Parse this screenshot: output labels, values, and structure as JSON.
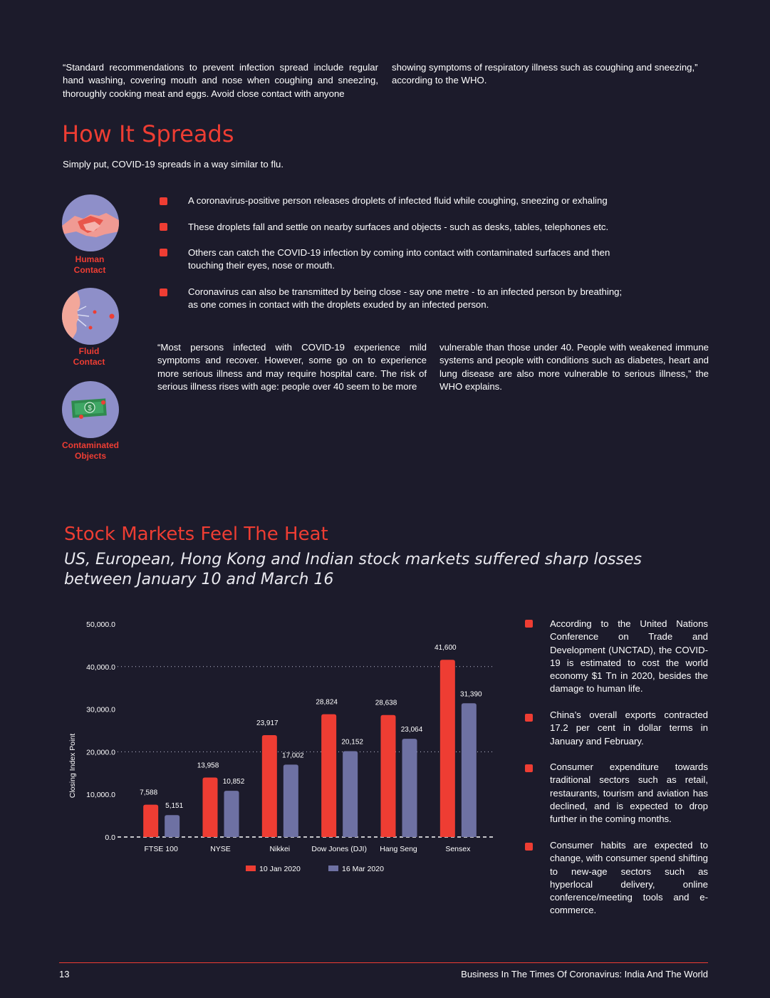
{
  "intro": {
    "col1": "“Standard recommendations to prevent infection spread include regular hand washing, covering mouth and nose when coughing and sneezing, thoroughly cooking meat and eggs. Avoid close contact with anyone",
    "col2": "showing symptoms of respiratory illness such as coughing and sneezing,” according to the WHO."
  },
  "spreads": {
    "title": "How It Spreads",
    "subtitle": "Simply put, COVID-19 spreads in a way similar to flu.",
    "icons": [
      {
        "label1": "Human",
        "label2": "Contact",
        "icon": "handshake-icon"
      },
      {
        "label1": "Fluid",
        "label2": "Contact",
        "icon": "sneeze-icon"
      },
      {
        "label1": "Contaminated",
        "label2": "Objects",
        "icon": "money-icon"
      }
    ],
    "bullets": [
      "A coronavirus-positive person releases droplets of infected fluid while coughing, sneezing or exhaling",
      "These droplets fall and settle on nearby surfaces and objects - such as desks, tables, telephones etc.",
      "Others can catch the COVID-19 infection by coming into contact with contaminated surfaces and then touching their eyes, nose or mouth.",
      "Coronavirus can also be transmitted by being close - say one metre - to an infected person by breathing; as one comes in contact with the droplets exuded by an infected person."
    ],
    "quote_col1": "“Most persons infected with COVID-19 experience mild symptoms and recover. However, some go on to experience more serious illness and may require hospital care. The risk of serious illness rises with age: people over 40 seem to be more",
    "quote_col2": "vulnerable than those under 40. People with weakened immune systems and people with conditions such as diabetes, heart and lung disease are also more vulnerable to serious illness,” the WHO explains."
  },
  "stocks": {
    "title": "Stock Markets Feel The Heat",
    "subtitle": "US, European, Hong Kong and Indian stock markets suffered sharp losses between January 10 and March 16",
    "side_bullets": [
      "According to the United Nations Conference on Trade and Development (UNCTAD), the COVID-19 is estimated to cost the world economy $1 Tn in 2020, besides the damage to human life.",
      "China’s overall exports contracted 17.2 per cent in dollar terms in January and February.",
      "Consumer expenditure towards traditional sectors such as retail, restaurants, tourism and aviation has declined, and is expected to drop further in the coming months.",
      "Consumer habits are expected to change, with consumer spend shifting to new-age sectors such as hyperlocal delivery, online conference/meeting tools and e-commerce."
    ]
  },
  "chart_data": {
    "type": "bar",
    "title": "",
    "ylabel": "Closing Index Point",
    "xlabel": "",
    "ylim": [
      0,
      50000
    ],
    "yticks": [
      "0.0",
      "10,000.0",
      "20,000.0",
      "30,000.0",
      "40,000.0",
      "50,000.0"
    ],
    "categories": [
      "FTSE 100",
      "NYSE",
      "Nikkei",
      "Dow Jones (DJI)",
      "Hang Seng",
      "Sensex"
    ],
    "series": [
      {
        "name": "10 Jan 2020",
        "color": "#ee3d33",
        "values": [
          7588,
          13958,
          23917,
          28824,
          28638,
          41600
        ],
        "labels": [
          "7,588",
          "13,958",
          "23,917",
          "28,824",
          "28,638",
          "41,600"
        ]
      },
      {
        "name": "16 Mar 2020",
        "color": "#6e71a3",
        "values": [
          5151,
          10852,
          17002,
          20152,
          23064,
          31390
        ],
        "labels": [
          "5,151",
          "10,852",
          "17,002",
          "20,152",
          "23,064",
          "31,390"
        ]
      }
    ],
    "legend": "bottom"
  },
  "footer": {
    "page": "13",
    "title": "Business In The Times Of Coronavirus: India And The World"
  },
  "colors": {
    "accent": "#ee3d33",
    "secondary": "#6e71a3",
    "background": "#1c1b2b",
    "icon_bg": "#8e8fc9"
  }
}
